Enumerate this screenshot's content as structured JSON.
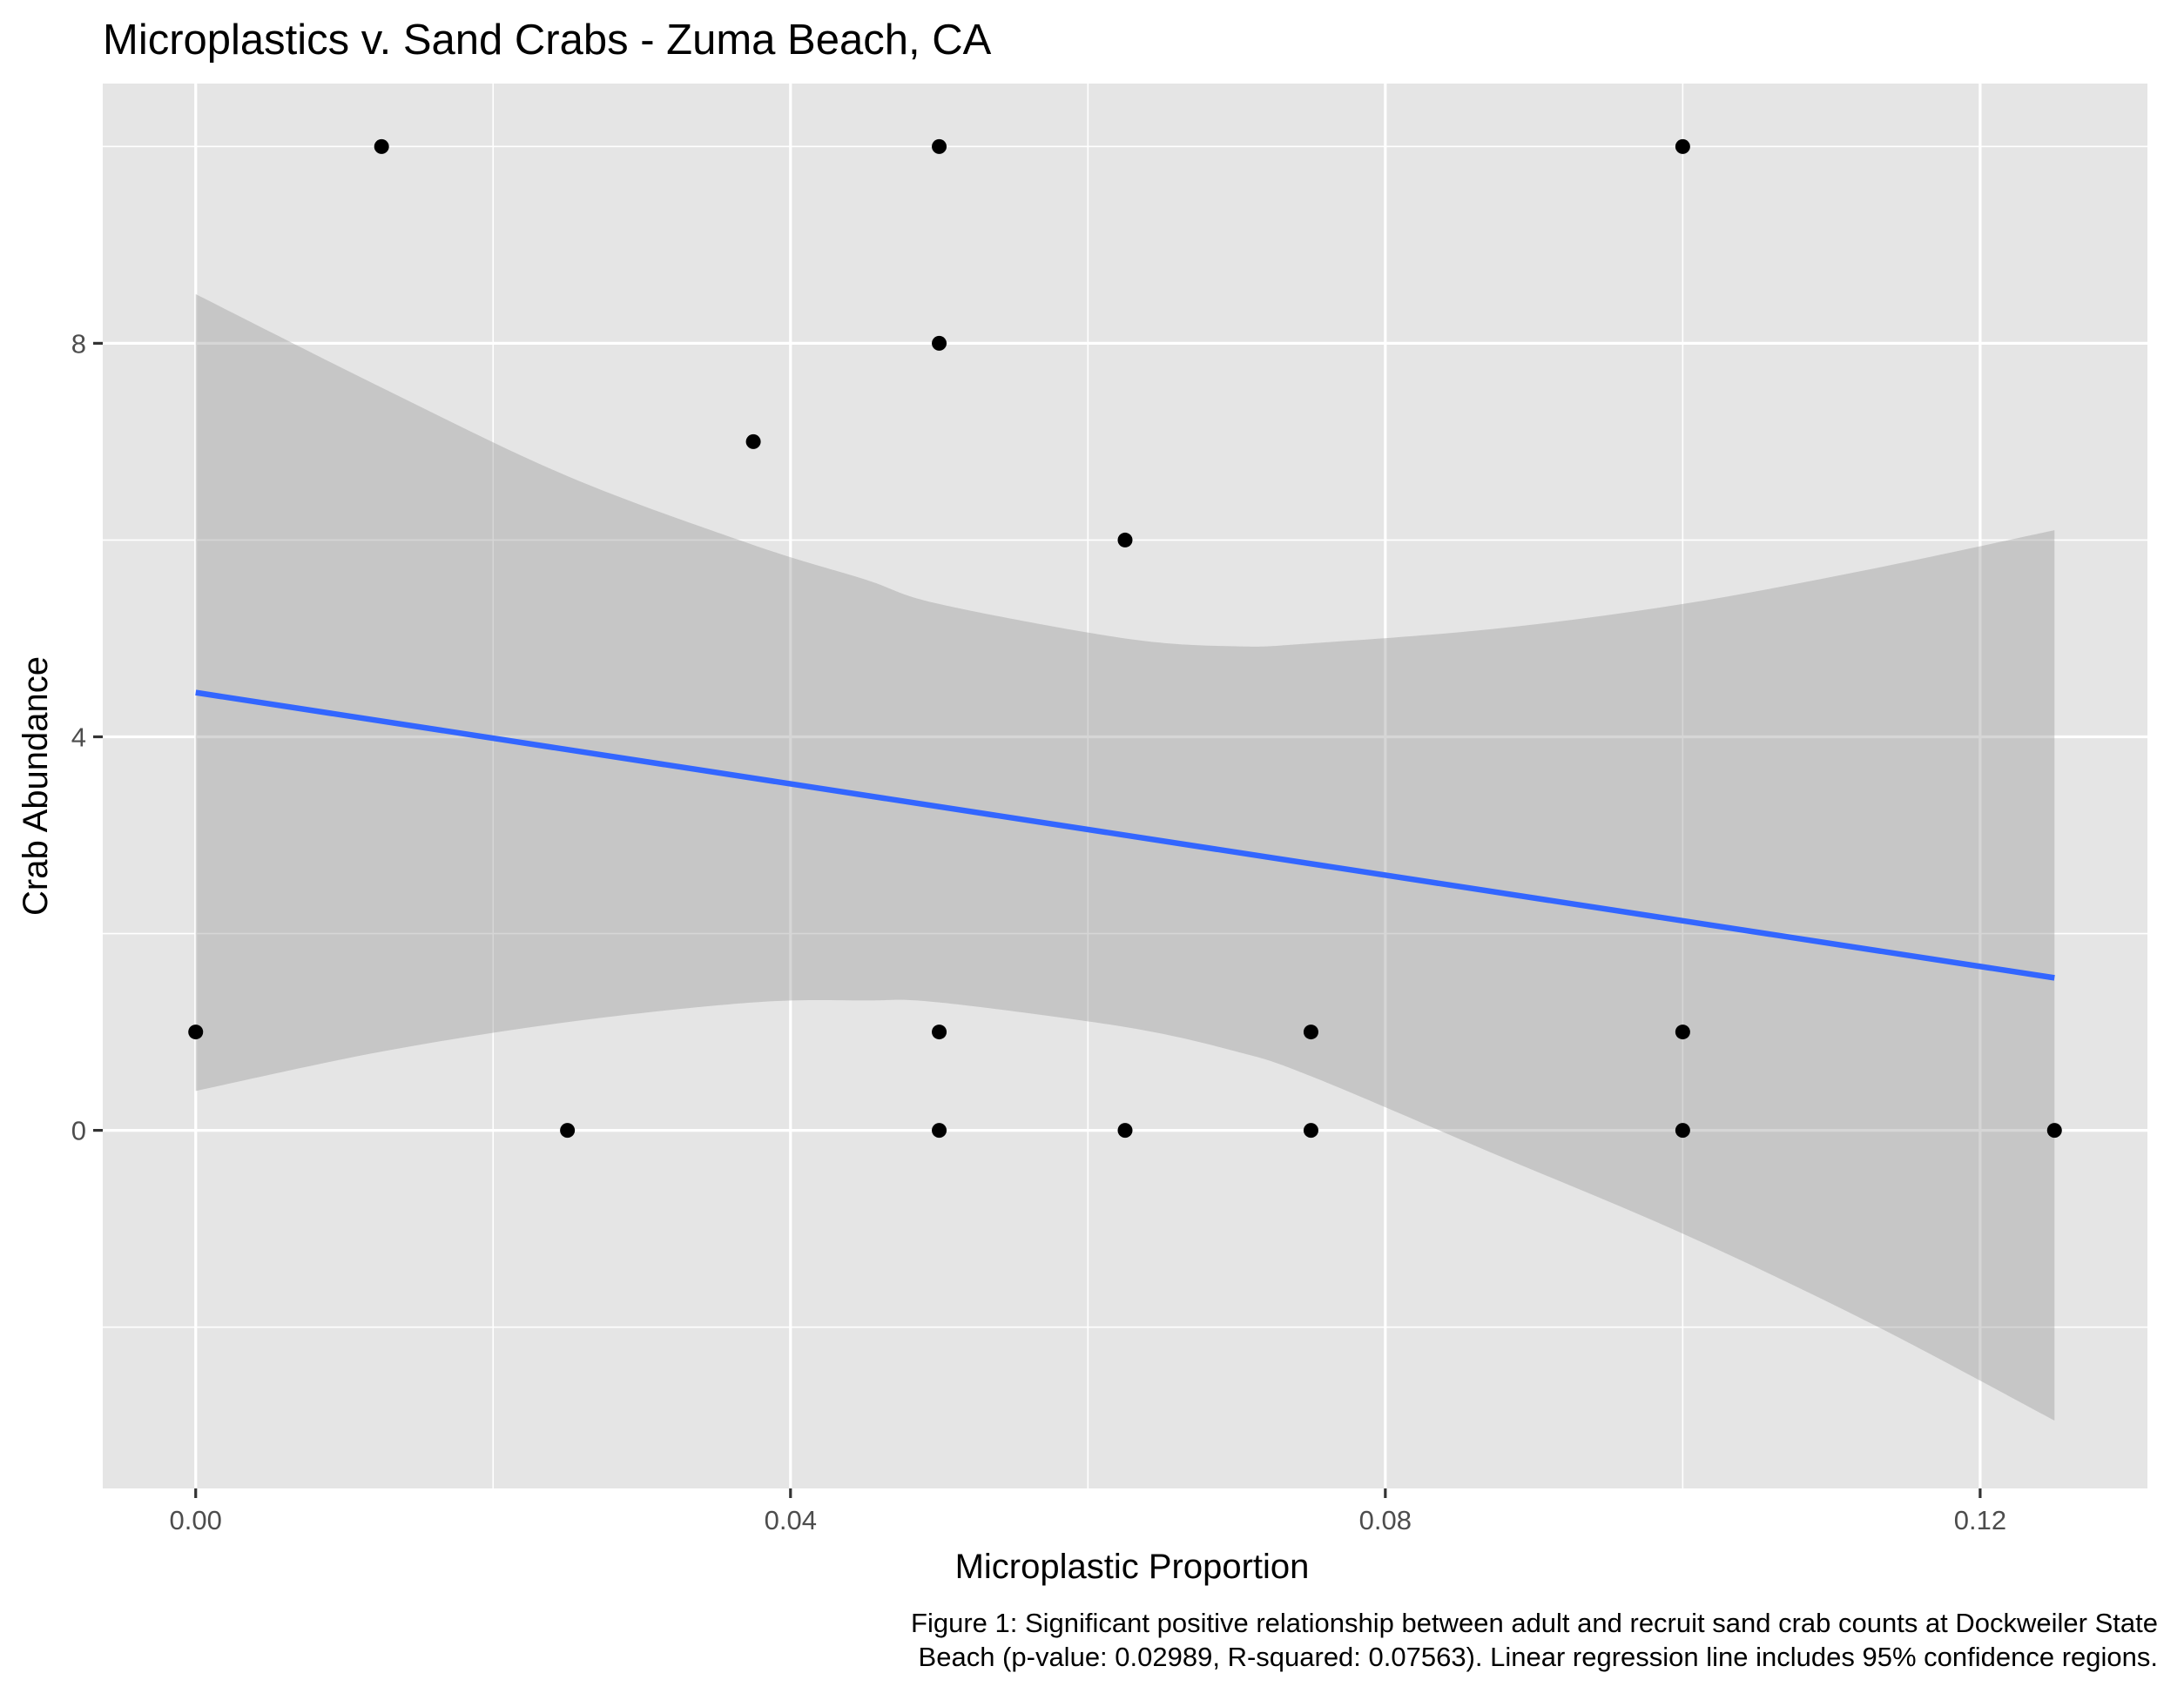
{
  "chart_data": {
    "type": "scatter",
    "title": "Microplastics v. Sand Crabs - Zuma Beach, CA",
    "xlabel": "Microplastic Proportion",
    "ylabel": "Crab Abundance",
    "caption_lines": [
      "Figure 1: Significant positive relationship between adult and recruit sand crab counts at Dockweiler State",
      "Beach (p-value: 0.02989, R-squared: 0.07563). Linear regression line includes 95% confidence regions."
    ],
    "xlim": [
      -0.00625,
      0.13125
    ],
    "ylim": [
      -3.64,
      10.64
    ],
    "x_ticks": [
      0.0,
      0.04,
      0.08,
      0.12
    ],
    "x_tick_labels": [
      "0.00",
      "0.04",
      "0.08",
      "0.12"
    ],
    "y_ticks": [
      0,
      4,
      8
    ],
    "y_tick_labels": [
      "0",
      "4",
      "8"
    ],
    "grid": true,
    "legend": "none",
    "points": [
      {
        "x": 0.0,
        "y": 1
      },
      {
        "x": 0.0125,
        "y": 10
      },
      {
        "x": 0.025,
        "y": 0
      },
      {
        "x": 0.0375,
        "y": 7
      },
      {
        "x": 0.05,
        "y": 10
      },
      {
        "x": 0.05,
        "y": 8
      },
      {
        "x": 0.05,
        "y": 1
      },
      {
        "x": 0.05,
        "y": 0
      },
      {
        "x": 0.0625,
        "y": 6
      },
      {
        "x": 0.0625,
        "y": 0
      },
      {
        "x": 0.075,
        "y": 1
      },
      {
        "x": 0.075,
        "y": 0
      },
      {
        "x": 0.1,
        "y": 10
      },
      {
        "x": 0.1,
        "y": 1
      },
      {
        "x": 0.1,
        "y": 0
      },
      {
        "x": 0.125,
        "y": 0
      }
    ],
    "regression": {
      "x": [
        0.0,
        0.125
      ],
      "y": [
        4.45,
        1.55
      ],
      "color": "#3366FF"
    },
    "confidence_band": {
      "x": [
        0.0,
        0.0125,
        0.025,
        0.0375,
        0.045,
        0.05,
        0.0625,
        0.07,
        0.075,
        0.0875,
        0.1,
        0.1125,
        0.125
      ],
      "upper": [
        8.5,
        7.55,
        6.65,
        5.95,
        5.6,
        5.35,
        5.0,
        4.92,
        4.95,
        5.1,
        5.35,
        5.7,
        6.1
      ],
      "lower": [
        0.4,
        0.8,
        1.1,
        1.3,
        1.32,
        1.3,
        1.05,
        0.8,
        0.55,
        -0.25,
        -1.05,
        -1.95,
        -2.95
      ],
      "color": "#999999"
    },
    "colors": {
      "panel_bg": "#E5E5E5",
      "grid": "#FFFFFF",
      "point": "#000000",
      "text": "#000000",
      "tick_text": "#4D4D4D"
    }
  }
}
